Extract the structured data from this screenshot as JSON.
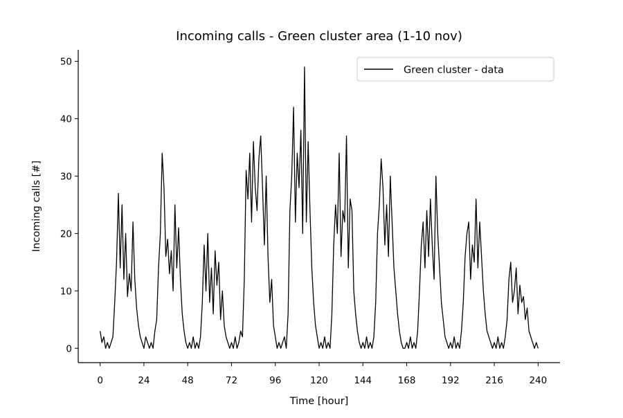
{
  "chart_data": {
    "type": "line",
    "title": "Incoming calls - Green cluster area (1-10 nov)",
    "x_label": "Time [hour]",
    "y_label": "Incoming calls [#]",
    "x": [
      0,
      1,
      2,
      3,
      4,
      5,
      6,
      7,
      8,
      9,
      10,
      11,
      12,
      13,
      14,
      15,
      16,
      17,
      18,
      19,
      20,
      21,
      22,
      23,
      24,
      25,
      26,
      27,
      28,
      29,
      30,
      31,
      32,
      33,
      34,
      35,
      36,
      37,
      38,
      39,
      40,
      41,
      42,
      43,
      44,
      45,
      46,
      47,
      48,
      49,
      50,
      51,
      52,
      53,
      54,
      55,
      56,
      57,
      58,
      59,
      60,
      61,
      62,
      63,
      64,
      65,
      66,
      67,
      68,
      69,
      70,
      71,
      72,
      73,
      74,
      75,
      76,
      77,
      78,
      79,
      80,
      81,
      82,
      83,
      84,
      85,
      86,
      87,
      88,
      89,
      90,
      91,
      92,
      93,
      94,
      95,
      96,
      97,
      98,
      99,
      100,
      101,
      102,
      103,
      104,
      105,
      106,
      107,
      108,
      109,
      110,
      111,
      112,
      113,
      114,
      115,
      116,
      117,
      118,
      119,
      120,
      121,
      122,
      123,
      124,
      125,
      126,
      127,
      128,
      129,
      130,
      131,
      132,
      133,
      134,
      135,
      136,
      137,
      138,
      139,
      140,
      141,
      142,
      143,
      144,
      145,
      146,
      147,
      148,
      149,
      150,
      151,
      152,
      153,
      154,
      155,
      156,
      157,
      158,
      159,
      160,
      161,
      162,
      163,
      164,
      165,
      166,
      167,
      168,
      169,
      170,
      171,
      172,
      173,
      174,
      175,
      176,
      177,
      178,
      179,
      180,
      181,
      182,
      183,
      184,
      185,
      186,
      187,
      188,
      189,
      190,
      191,
      192,
      193,
      194,
      195,
      196,
      197,
      198,
      199,
      200,
      201,
      202,
      203,
      204,
      205,
      206,
      207,
      208,
      209,
      210,
      211,
      212,
      213,
      214,
      215,
      216,
      217,
      218,
      219,
      220,
      221,
      222,
      223,
      224,
      225,
      226,
      227,
      228,
      229,
      230,
      231,
      232,
      233,
      234,
      235,
      236,
      237,
      238,
      239,
      240
    ],
    "series": [
      {
        "name": "Green cluster - data",
        "color": "#000000",
        "values": [
          3,
          1,
          2,
          0,
          1,
          0,
          1,
          2,
          8,
          15,
          27,
          14,
          25,
          12,
          20,
          9,
          13,
          10,
          22,
          12,
          7,
          4,
          2,
          1,
          0,
          2,
          1,
          0,
          1,
          0,
          3,
          5,
          14,
          20,
          34,
          28,
          16,
          19,
          13,
          17,
          10,
          25,
          14,
          21,
          12,
          6,
          3,
          1,
          0,
          1,
          0,
          2,
          0,
          1,
          0,
          2,
          8,
          18,
          10,
          20,
          8,
          14,
          6,
          17,
          11,
          15,
          5,
          10,
          4,
          2,
          1,
          0,
          1,
          0,
          2,
          0,
          1,
          3,
          2,
          12,
          31,
          26,
          34,
          22,
          36,
          28,
          24,
          33,
          37,
          28,
          18,
          30,
          16,
          8,
          12,
          4,
          2,
          0,
          1,
          0,
          1,
          2,
          0,
          6,
          24,
          30,
          42,
          22,
          34,
          28,
          38,
          20,
          49,
          22,
          36,
          24,
          14,
          8,
          4,
          2,
          0,
          1,
          0,
          2,
          0,
          1,
          0,
          6,
          18,
          25,
          20,
          34,
          16,
          24,
          22,
          37,
          14,
          26,
          24,
          10,
          6,
          3,
          1,
          0,
          1,
          0,
          2,
          0,
          1,
          0,
          2,
          8,
          20,
          25,
          33,
          28,
          18,
          25,
          16,
          30,
          22,
          14,
          10,
          6,
          3,
          1,
          0,
          0,
          1,
          0,
          2,
          0,
          1,
          0,
          3,
          10,
          18,
          22,
          14,
          24,
          16,
          26,
          18,
          12,
          30,
          20,
          14,
          8,
          5,
          2,
          1,
          0,
          1,
          0,
          2,
          0,
          1,
          0,
          3,
          8,
          16,
          20,
          22,
          12,
          18,
          15,
          26,
          14,
          22,
          16,
          10,
          6,
          3,
          2,
          1,
          0,
          1,
          0,
          2,
          0,
          1,
          0,
          2,
          5,
          12,
          15,
          8,
          10,
          14,
          6,
          11,
          8,
          9,
          5,
          7,
          3,
          2,
          1,
          0,
          1,
          0
        ]
      }
    ],
    "xlim": [
      -12,
      252
    ],
    "ylim": [
      -2.5,
      52
    ],
    "xticks": [
      0,
      24,
      48,
      72,
      96,
      120,
      144,
      168,
      192,
      216,
      240
    ],
    "yticks": [
      0,
      10,
      20,
      30,
      40,
      50
    ],
    "legend": "upper right"
  }
}
